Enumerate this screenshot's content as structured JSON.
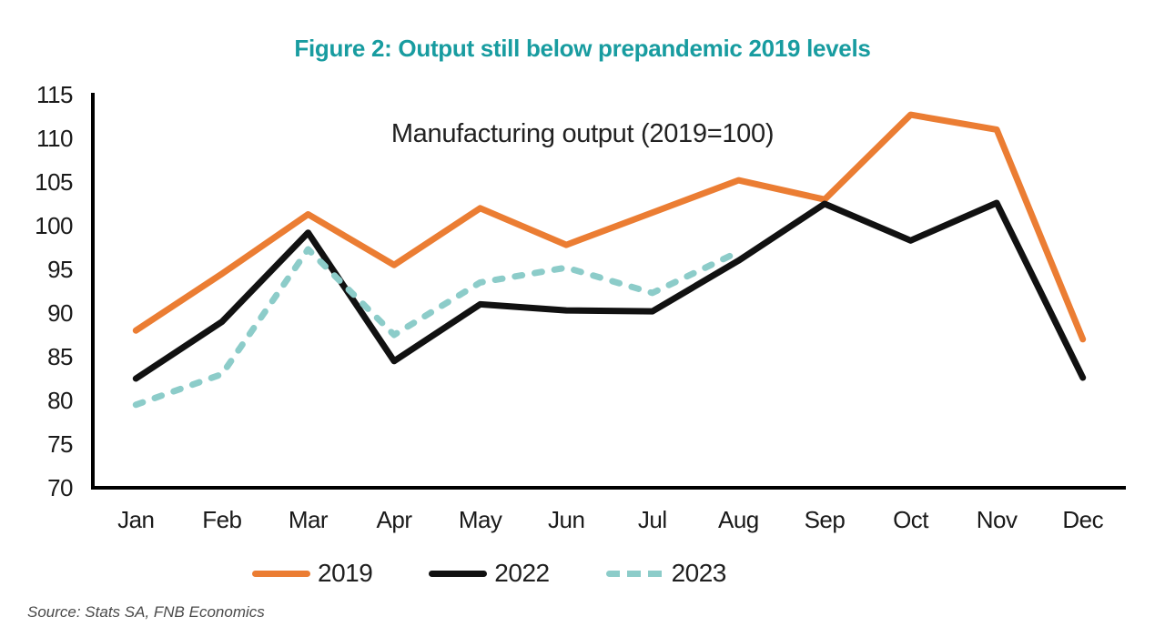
{
  "page": {
    "title": "Figure 2: Output still below prepandemic 2019 levels",
    "source_note": "Source: Stats SA, FNB Economics"
  },
  "colors": {
    "title_teal": "#189CA0",
    "series_2019_orange": "#EB7D33",
    "series_2022_black": "#111111",
    "series_2023_teal": "#8CCCC9",
    "axis_black": "#000000",
    "source_gray": "#4a4a4a"
  },
  "chart_data": {
    "type": "line",
    "title": "Figure 2: Output still below prepandemic 2019 levels",
    "subtitle": "Manufacturing output (2019=100)",
    "categories": [
      "Jan",
      "Feb",
      "Mar",
      "Apr",
      "May",
      "Jun",
      "Jul",
      "Aug",
      "Sep",
      "Oct",
      "Nov",
      "Dec"
    ],
    "series": [
      {
        "name": "2019",
        "color": "#EB7D33",
        "dash": false,
        "values": [
          88,
          94.5,
          101.3,
          95.5,
          102,
          97.8,
          101.5,
          105.2,
          103,
          112.7,
          111,
          87
        ]
      },
      {
        "name": "2022",
        "color": "#111111",
        "dash": false,
        "values": [
          82.5,
          89,
          99.2,
          84.5,
          91,
          90.3,
          90.2,
          96,
          102.5,
          98.3,
          102.6,
          82.6
        ]
      },
      {
        "name": "2023",
        "color": "#8CCCC9",
        "dash": true,
        "values": [
          79.5,
          83,
          97.3,
          87.5,
          93.5,
          95.2,
          92.3,
          97,
          null,
          null,
          null,
          null
        ]
      }
    ],
    "ylim": [
      70,
      115
    ],
    "yticks": [
      70,
      75,
      80,
      85,
      90,
      95,
      100,
      105,
      110,
      115
    ],
    "grid": false,
    "legend_position": "bottom"
  }
}
